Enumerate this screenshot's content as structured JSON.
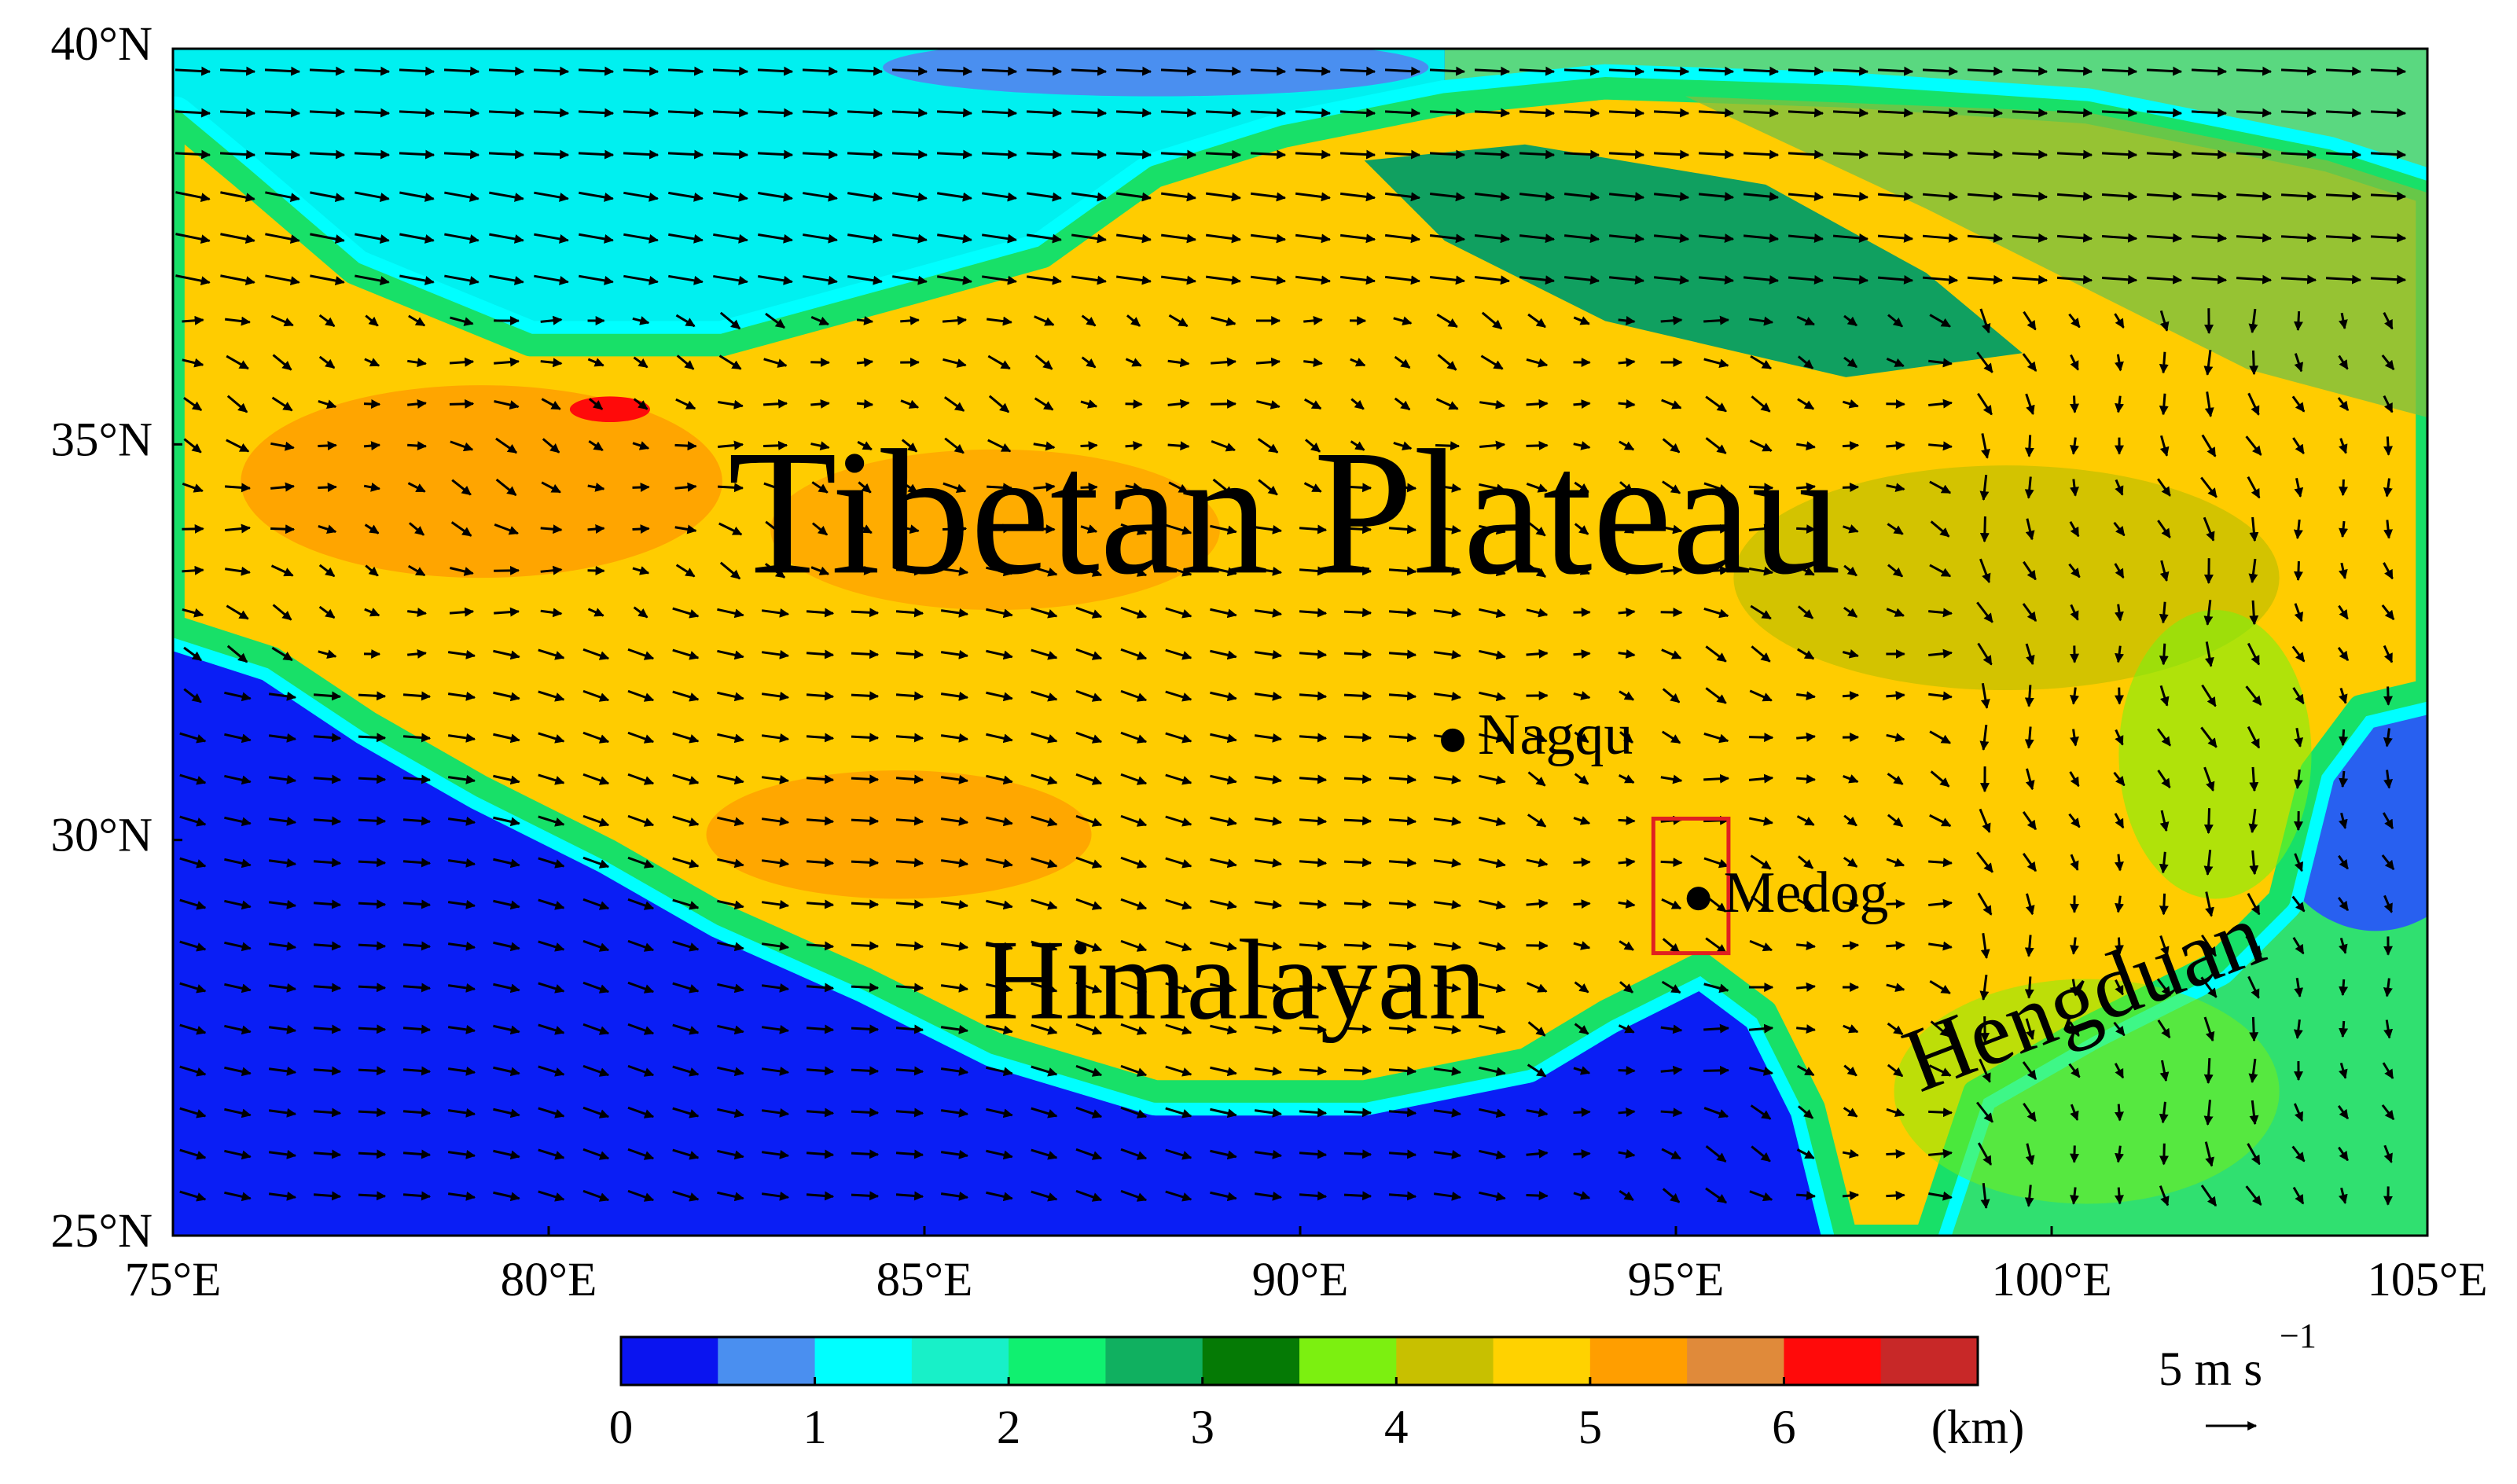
{
  "map": {
    "xlim": [
      75,
      105
    ],
    "ylim": [
      25,
      40
    ],
    "xticks": [
      {
        "value": 75,
        "label": "75°E"
      },
      {
        "value": 80,
        "label": "80°E"
      },
      {
        "value": 85,
        "label": "85°E"
      },
      {
        "value": 90,
        "label": "90°E"
      },
      {
        "value": 95,
        "label": "95°E"
      },
      {
        "value": 100,
        "label": "100°E"
      },
      {
        "value": 105,
        "label": "105°E"
      }
    ],
    "yticks": [
      {
        "value": 25,
        "label": "25°N"
      },
      {
        "value": 30,
        "label": "30°N"
      },
      {
        "value": 35,
        "label": "35°N"
      },
      {
        "value": 40,
        "label": "40°N"
      }
    ],
    "labels": {
      "plateau": "Tibetan Plateau",
      "himalayan": "Himalayan",
      "hengduan": "Hengduan"
    },
    "stations": [
      {
        "name": "Nagqu",
        "lon": 92.03,
        "lat": 31.26
      },
      {
        "name": "Medog",
        "lon": 95.3,
        "lat": 29.26
      }
    ],
    "box": {
      "lon": [
        94.7,
        95.7
      ],
      "lat": [
        28.57,
        30.27
      ],
      "color": "#e02020"
    },
    "colorbar": {
      "colors": [
        "#0a14f0",
        "#4a8ff0",
        "#00ffff",
        "#18f0c8",
        "#10f070",
        "#10b060",
        "#057a05",
        "#7cf010",
        "#c8c000",
        "#ffd200",
        "#ff9e00",
        "#e08a3a",
        "#ff0a0a",
        "#c82828"
      ],
      "lim": [
        0,
        7
      ],
      "ticks": [
        0,
        1,
        2,
        3,
        4,
        5,
        6
      ],
      "unit": "(km)"
    },
    "wind_legend": {
      "text": "5 m s",
      "exponent": "−1"
    }
  }
}
